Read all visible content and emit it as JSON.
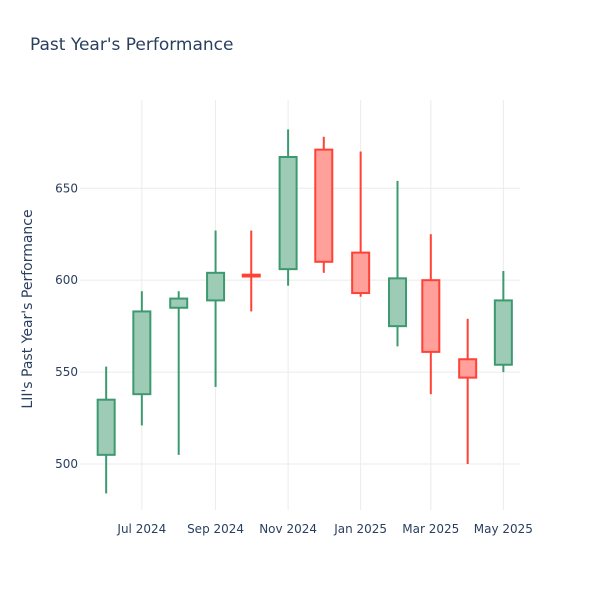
{
  "chart_data": {
    "type": "candlestick",
    "title": "Past Year's Performance",
    "ylabel": "LII's Past Year's Performance",
    "xlabel": "",
    "ylim": [
      475,
      698
    ],
    "grid": true,
    "y_ticks": [
      500,
      550,
      600,
      650
    ],
    "x_ticks": [
      {
        "label": "Jul 2024",
        "date": "2024-07-01"
      },
      {
        "label": "Sep 2024",
        "date": "2024-09-01"
      },
      {
        "label": "Nov 2024",
        "date": "2024-11-01"
      },
      {
        "label": "Jan 2025",
        "date": "2025-01-01"
      },
      {
        "label": "Mar 2025",
        "date": "2025-03-01"
      },
      {
        "label": "May 2025",
        "date": "2025-05-01"
      }
    ],
    "x_range": [
      "2024-05-10",
      "2025-05-15"
    ],
    "candles": [
      {
        "date": "2024-06-01",
        "open": 505,
        "high": 553,
        "low": 484,
        "close": 535
      },
      {
        "date": "2024-07-01",
        "open": 538,
        "high": 594,
        "low": 521,
        "close": 583
      },
      {
        "date": "2024-08-01",
        "open": 585,
        "high": 594,
        "low": 505,
        "close": 590
      },
      {
        "date": "2024-09-01",
        "open": 589,
        "high": 627,
        "low": 542,
        "close": 604
      },
      {
        "date": "2024-10-01",
        "open": 603,
        "high": 627,
        "low": 583,
        "close": 602
      },
      {
        "date": "2024-11-01",
        "open": 606,
        "high": 682,
        "low": 597,
        "close": 667
      },
      {
        "date": "2024-12-01",
        "open": 671,
        "high": 678,
        "low": 604,
        "close": 610
      },
      {
        "date": "2025-01-01",
        "open": 615,
        "high": 670,
        "low": 591,
        "close": 593
      },
      {
        "date": "2025-02-01",
        "open": 575,
        "high": 654,
        "low": 564,
        "close": 601
      },
      {
        "date": "2025-03-01",
        "open": 600,
        "high": 625,
        "low": 538,
        "close": 561
      },
      {
        "date": "2025-04-01",
        "open": 557,
        "high": 579,
        "low": 500,
        "close": 547
      },
      {
        "date": "2025-05-01",
        "open": 554,
        "high": 605,
        "low": 550,
        "close": 589
      }
    ],
    "colors": {
      "increasing_line": "#3d9970",
      "increasing_fill": "#9ecbb5",
      "decreasing_line": "#ff4136",
      "decreasing_fill": "#ffa09b"
    }
  }
}
